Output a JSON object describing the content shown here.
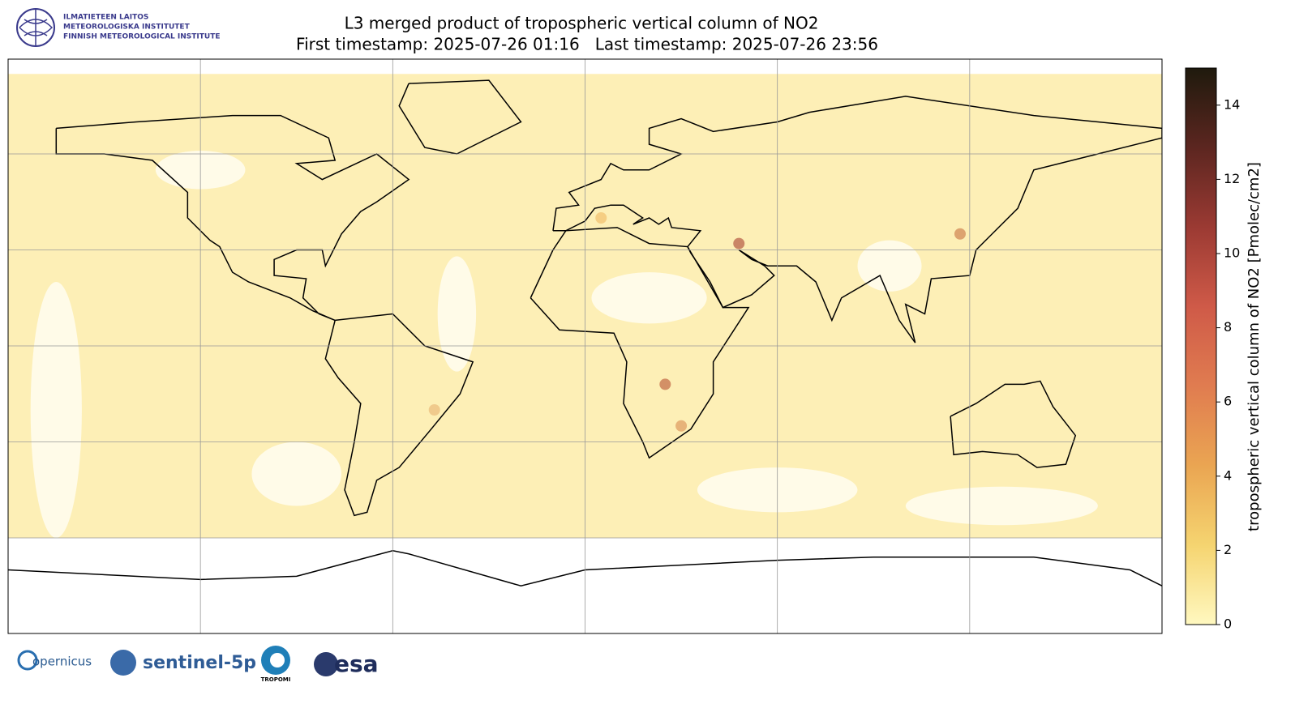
{
  "header": {
    "title": "L3 merged product of tropospheric vertical column of NO2",
    "subtitle": "First timestamp: 2025-07-26 01:16   Last timestamp: 2025-07-26 23:56"
  },
  "institute_logo": [
    "ILMATIETEEN LAITOS",
    "METEOROLOGISKA INSTITUTET",
    "FINNISH METEOROLOGICAL INSTITUTE"
  ],
  "partner_logos": [
    "opernicus",
    "sentinel-5p",
    "TROPOMI",
    "esa"
  ],
  "colorbar": {
    "label": "tropospheric vertical column of NO2 [Pmolec/cm2]",
    "lim": [
      0,
      15
    ],
    "ticks": [
      0,
      2,
      4,
      6,
      8,
      10,
      12,
      14
    ],
    "colormap": [
      "#fff8c0",
      "#f5d470",
      "#eaa552",
      "#e07c50",
      "#cf5a48",
      "#9b3a33",
      "#5c2620",
      "#1f1a0d"
    ]
  }
}
